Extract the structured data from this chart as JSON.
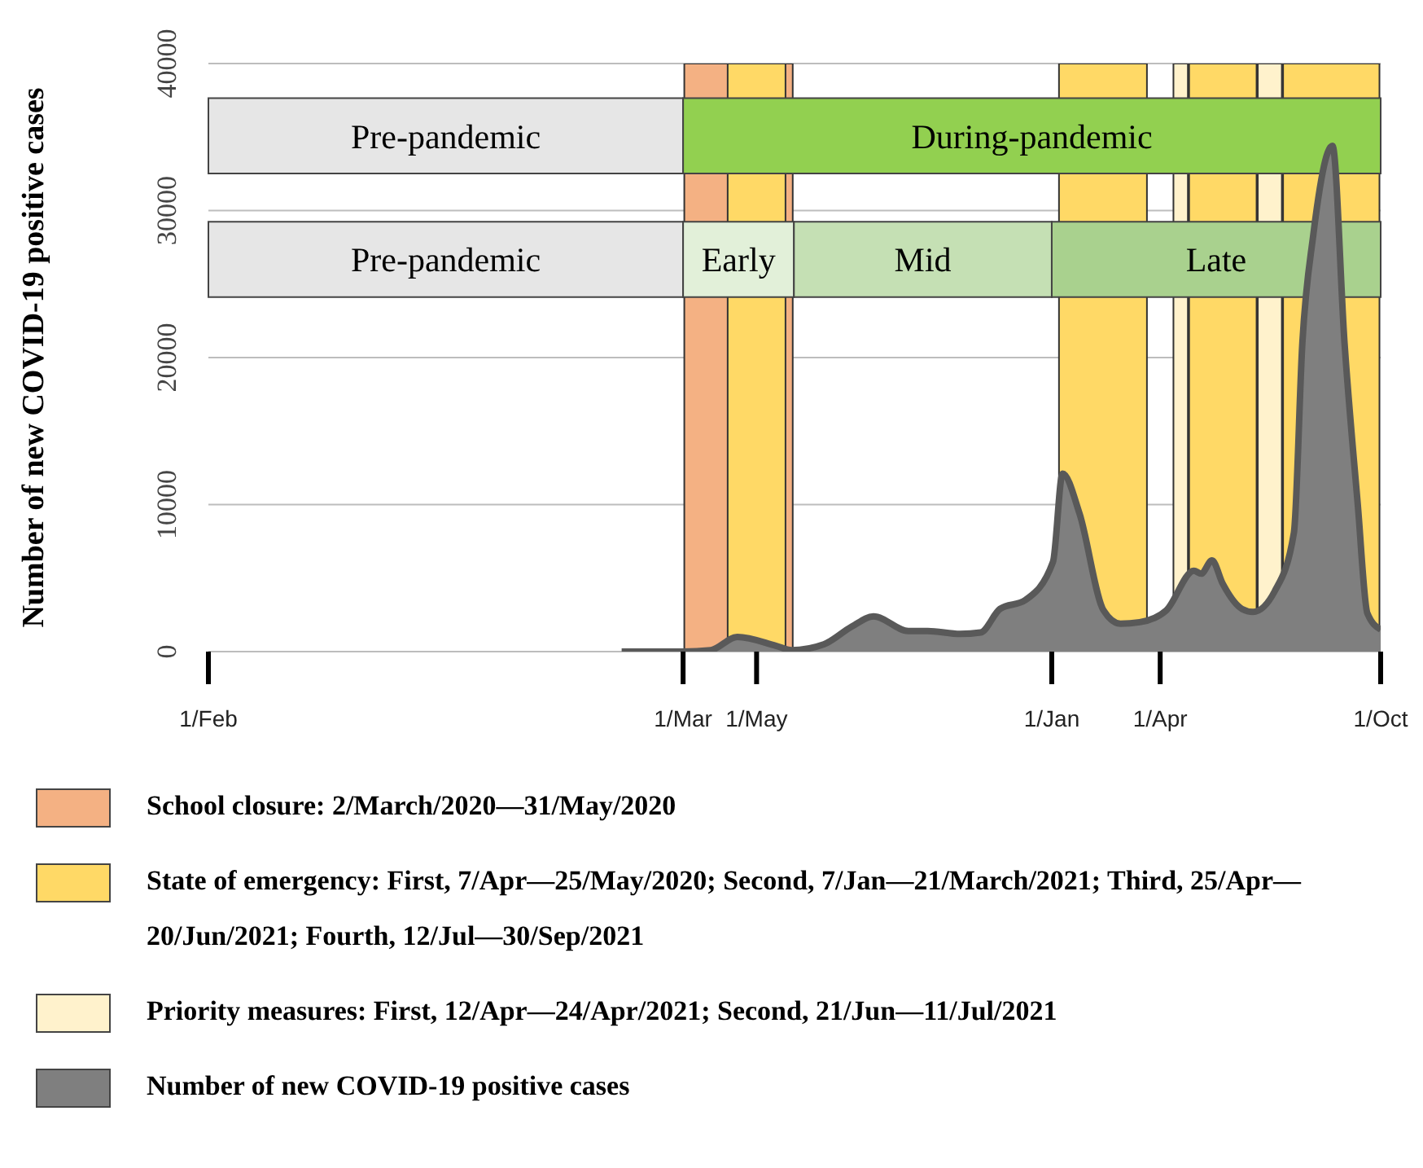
{
  "chart_data": {
    "type": "area",
    "ylabel": "Number of new COVID-19 positive cases",
    "x": [
      "2020-01-10",
      "2020-03-01",
      "2020-03-24",
      "2020-04-15",
      "2020-05-17",
      "2020-05-30",
      "2020-06-26",
      "2020-07-19",
      "2020-08-06",
      "2020-09-04",
      "2020-09-20",
      "2020-10-17",
      "2020-11-03",
      "2020-11-19",
      "2020-12-10",
      "2021-01-02",
      "2021-01-10",
      "2021-01-24",
      "2021-02-13",
      "2021-02-27",
      "2021-03-15",
      "2021-04-06",
      "2021-04-29",
      "2021-05-05",
      "2021-05-14",
      "2021-05-23",
      "2021-06-08",
      "2021-06-17",
      "2021-07-05",
      "2021-07-21",
      "2021-07-28",
      "2021-08-06",
      "2021-08-22",
      "2021-09-01",
      "2021-09-12",
      "2021-09-20",
      "2021-10-01"
    ],
    "series": [
      {
        "name": "Number of new COVID-19 positive cases",
        "color": "#7f7f7f",
        "values": [
          0,
          0,
          100,
          1000,
          400,
          100,
          500,
          1700,
          2400,
          1400,
          1400,
          1200,
          1300,
          2900,
          3500,
          6100,
          12100,
          9400,
          2800,
          1900,
          2000,
          2800,
          5500,
          5300,
          6200,
          4600,
          2900,
          2700,
          4100,
          8100,
          21000,
          28300,
          34400,
          21000,
          10000,
          2600,
          1500
        ]
      }
    ],
    "xlim": [
      "2019-02-01",
      "2021-10-01"
    ],
    "xticks": [
      {
        "value": "2019-02-01",
        "label": "1/Feb"
      },
      {
        "value": "2020-03-01",
        "label": "1/Mar"
      },
      {
        "value": "2020-05-01",
        "label": "1/May"
      },
      {
        "value": "2021-01-01",
        "label": "1/Jan"
      },
      {
        "value": "2021-04-01",
        "label": "1/Apr"
      },
      {
        "value": "2021-10-01",
        "label": "1/Oct"
      }
    ],
    "ylim": [
      0,
      40000
    ],
    "yticks": [
      0,
      10000,
      20000,
      30000,
      40000
    ],
    "grid": "y",
    "legend": "bottom",
    "bands": [
      {
        "axis": "x",
        "from": "2020-03-02",
        "to": "2020-05-31",
        "label": "School closure: 2/March/2020—31/May/2020",
        "color": "#f4b183"
      },
      {
        "axis": "x",
        "from": "2020-04-07",
        "to": "2020-05-25",
        "label": "State of emergency: First, 7/Apr—25/May/2020; Second, 7/Jan—21/March/2021; Third, 25/Apr—20/Jun/2021; Fourth, 12/Jul—30/Sep/2021",
        "color": "#ffd966"
      },
      {
        "axis": "x",
        "from": "2021-01-07",
        "to": "2021-03-21",
        "label": null,
        "color": "#ffd966"
      },
      {
        "axis": "x",
        "from": "2021-04-25",
        "to": "2021-06-20",
        "label": null,
        "color": "#ffd966"
      },
      {
        "axis": "x",
        "from": "2021-07-12",
        "to": "2021-09-30",
        "label": null,
        "color": "#ffd966"
      },
      {
        "axis": "x",
        "from": "2021-04-12",
        "to": "2021-04-24",
        "label": "Priority measures: First, 12/Apr—24/Apr/2021; Second, 21/Jun—11/Jul/2021",
        "color": "#fff2cc"
      },
      {
        "axis": "x",
        "from": "2021-06-21",
        "to": "2021-07-11",
        "label": null,
        "color": "#fff2cc"
      },
      {
        "axis": "x",
        "from": "2019-02-01",
        "to": "2020-03-01",
        "label": "Pre-pandemic",
        "color": "#e6e6e6"
      },
      {
        "axis": "x",
        "from": "2020-03-01",
        "to": "2021-10-01",
        "label": "During-pandemic",
        "color": "#92d050"
      },
      {
        "axis": "x",
        "from": "2019-02-01",
        "to": "2020-03-01",
        "label": "Pre-pandemic",
        "color": "#e6e6e6"
      },
      {
        "axis": "x",
        "from": "2020-03-01",
        "to": "2020-06-01",
        "label": "Early",
        "color": "#e2f0d9"
      },
      {
        "axis": "x",
        "from": "2020-06-01",
        "to": "2021-01-01",
        "label": "Mid",
        "color": "#c5e0b4"
      },
      {
        "axis": "x",
        "from": "2021-01-01",
        "to": "2021-10-01",
        "label": "Late",
        "color": "#a9d18e"
      }
    ]
  }
}
